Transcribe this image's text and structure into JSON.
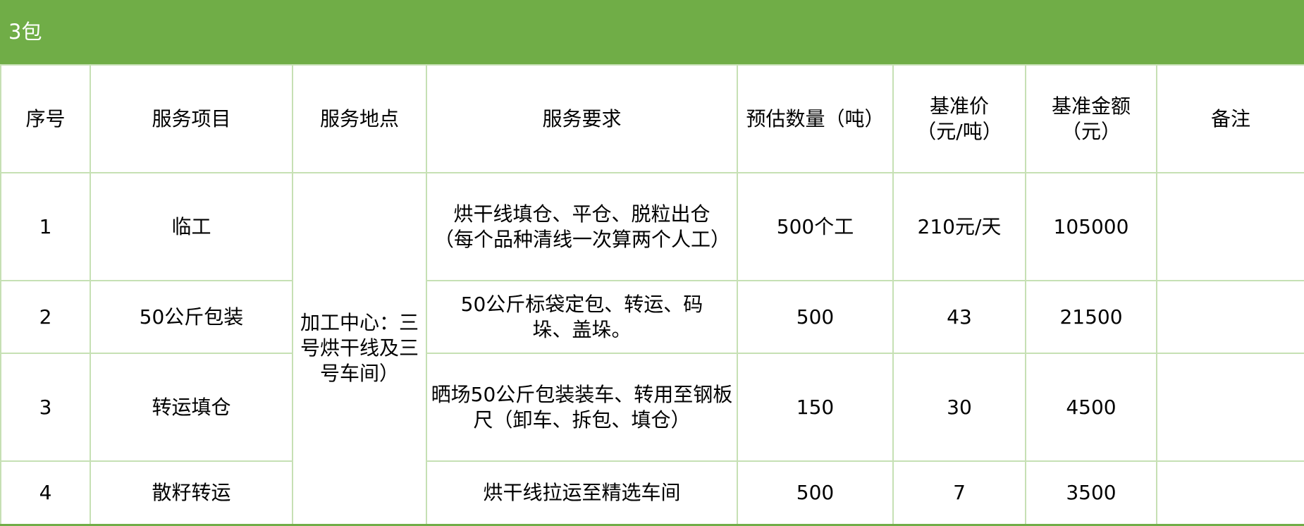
{
  "title": "3包",
  "colors": {
    "header_bg": "#70AD47",
    "grid": "#C6E0B4"
  },
  "columns": [
    "序号",
    "服务项目",
    "服务地点",
    "服务要求",
    "预估数量（吨）",
    "基准价（元/吨）",
    "基准金额（元）",
    "备注"
  ],
  "location": "加工中心：三号烘干线及三号车间）",
  "rows": [
    {
      "no": "1",
      "item": "临工",
      "req": "烘干线填仓、平仓、脱粒出仓（每个品种清线一次算两个人工）",
      "qty": "500个工",
      "price": "210元/天",
      "amount": "105000",
      "note": ""
    },
    {
      "no": "2",
      "item": "50公斤包装",
      "req": "50公斤标袋定包、转运、码垛、盖垛。",
      "qty": "500",
      "price": "43",
      "amount": "21500",
      "note": ""
    },
    {
      "no": "3",
      "item": "转运填仓",
      "req": "晒场50公斤包装装车、转用至钢板尺（卸车、拆包、填仓）",
      "qty": "150",
      "price": "30",
      "amount": "4500",
      "note": ""
    },
    {
      "no": "4",
      "item": "散籽转运",
      "req": "烘干线拉运至精选车间",
      "qty": "500",
      "price": "7",
      "amount": "3500",
      "note": ""
    }
  ]
}
